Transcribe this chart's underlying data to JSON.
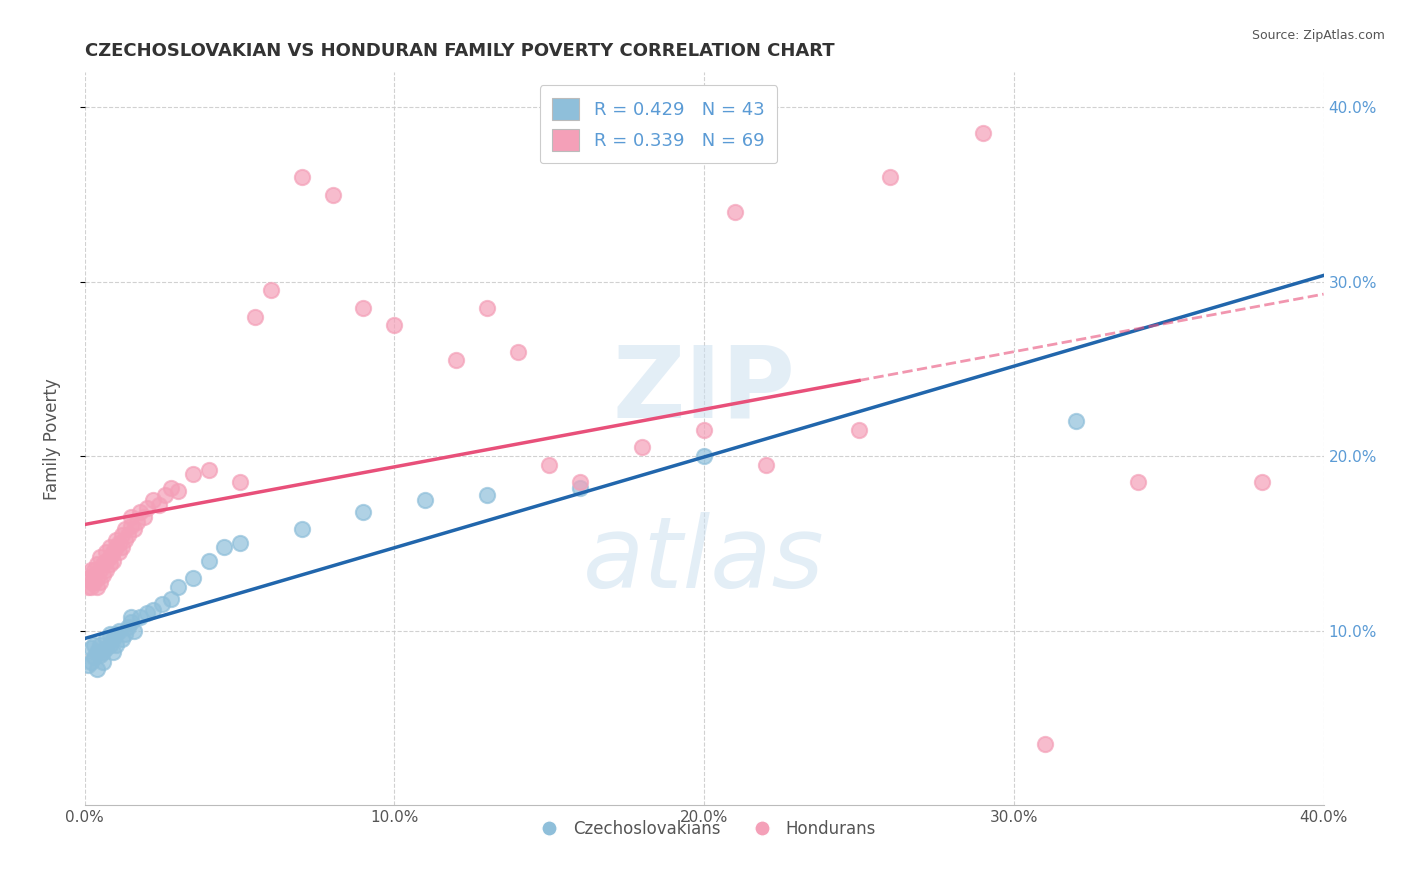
{
  "title": "CZECHOSLOVAKIAN VS HONDURAN FAMILY POVERTY CORRELATION CHART",
  "source": "Source: ZipAtlas.com",
  "ylabel": "Family Poverty",
  "xlim": [
    0.0,
    0.4
  ],
  "ylim": [
    0.0,
    0.42
  ],
  "xtick_labels": [
    "0.0%",
    "10.0%",
    "20.0%",
    "30.0%",
    "40.0%"
  ],
  "xtick_vals": [
    0.0,
    0.1,
    0.2,
    0.3,
    0.4
  ],
  "ytick_labels": [
    "10.0%",
    "20.0%",
    "30.0%",
    "40.0%"
  ],
  "ytick_vals": [
    0.1,
    0.2,
    0.3,
    0.4
  ],
  "legend_r1": "R = 0.429   N = 43",
  "legend_r2": "R = 0.339   N = 69",
  "color_czech": "#8fbfda",
  "color_honduran": "#f4a0b8",
  "line_color_czech": "#2166ac",
  "line_color_honduran": "#e8507a",
  "background_color": "#ffffff",
  "grid_color": "#cccccc",
  "title_color": "#333333",
  "axis_label_color": "#555555",
  "tick_label_color": "#5b9bd5",
  "czech_x": [
    0.001,
    0.002,
    0.002,
    0.003,
    0.003,
    0.004,
    0.004,
    0.005,
    0.005,
    0.006,
    0.006,
    0.007,
    0.007,
    0.008,
    0.008,
    0.009,
    0.009,
    0.01,
    0.01,
    0.011,
    0.012,
    0.013,
    0.014,
    0.015,
    0.015,
    0.016,
    0.018,
    0.02,
    0.022,
    0.025,
    0.028,
    0.03,
    0.035,
    0.04,
    0.045,
    0.05,
    0.07,
    0.09,
    0.11,
    0.13,
    0.16,
    0.2,
    0.32
  ],
  "czech_y": [
    0.08,
    0.082,
    0.09,
    0.085,
    0.092,
    0.088,
    0.078,
    0.086,
    0.092,
    0.082,
    0.088,
    0.09,
    0.095,
    0.092,
    0.098,
    0.088,
    0.095,
    0.092,
    0.098,
    0.1,
    0.095,
    0.098,
    0.102,
    0.105,
    0.108,
    0.1,
    0.108,
    0.11,
    0.112,
    0.115,
    0.118,
    0.125,
    0.13,
    0.14,
    0.148,
    0.15,
    0.158,
    0.168,
    0.175,
    0.178,
    0.182,
    0.2,
    0.22
  ],
  "honduran_x": [
    0.001,
    0.001,
    0.002,
    0.002,
    0.002,
    0.003,
    0.003,
    0.003,
    0.004,
    0.004,
    0.004,
    0.005,
    0.005,
    0.005,
    0.006,
    0.006,
    0.007,
    0.007,
    0.007,
    0.008,
    0.008,
    0.008,
    0.009,
    0.009,
    0.01,
    0.01,
    0.011,
    0.011,
    0.012,
    0.012,
    0.013,
    0.013,
    0.014,
    0.015,
    0.015,
    0.016,
    0.017,
    0.018,
    0.019,
    0.02,
    0.022,
    0.024,
    0.026,
    0.028,
    0.03,
    0.035,
    0.04,
    0.05,
    0.055,
    0.06,
    0.07,
    0.08,
    0.09,
    0.1,
    0.12,
    0.13,
    0.14,
    0.15,
    0.16,
    0.18,
    0.2,
    0.21,
    0.22,
    0.25,
    0.26,
    0.29,
    0.31,
    0.34,
    0.38
  ],
  "honduran_y": [
    0.13,
    0.125,
    0.135,
    0.125,
    0.128,
    0.132,
    0.128,
    0.135,
    0.13,
    0.138,
    0.125,
    0.135,
    0.142,
    0.128,
    0.138,
    0.132,
    0.14,
    0.135,
    0.145,
    0.138,
    0.142,
    0.148,
    0.14,
    0.145,
    0.148,
    0.152,
    0.145,
    0.15,
    0.148,
    0.155,
    0.152,
    0.158,
    0.155,
    0.16,
    0.165,
    0.158,
    0.162,
    0.168,
    0.165,
    0.17,
    0.175,
    0.172,
    0.178,
    0.182,
    0.18,
    0.19,
    0.192,
    0.185,
    0.28,
    0.295,
    0.36,
    0.35,
    0.285,
    0.275,
    0.255,
    0.285,
    0.26,
    0.195,
    0.185,
    0.205,
    0.215,
    0.34,
    0.195,
    0.215,
    0.36,
    0.385,
    0.035,
    0.185,
    0.185
  ]
}
